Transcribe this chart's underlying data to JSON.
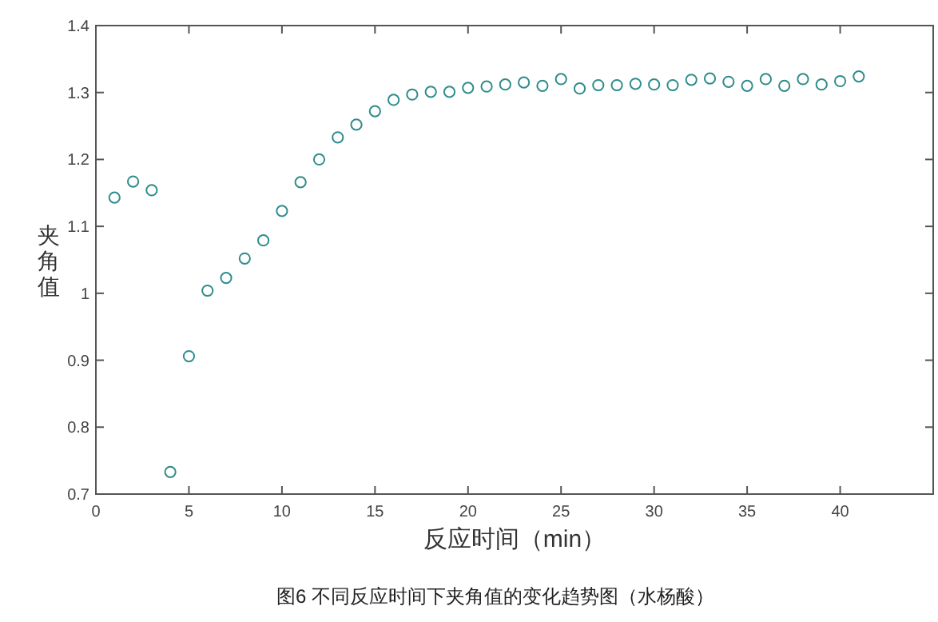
{
  "chart_data": {
    "type": "scatter",
    "xlabel": "反应时间（min）",
    "ylabel": "夹角值",
    "annotations": [
      "图6 不同反应时间下夹角值的变化趋势图（水杨酸）"
    ],
    "x": [
      1,
      2,
      3,
      4,
      5,
      6,
      7,
      8,
      9,
      10,
      11,
      12,
      13,
      14,
      15,
      16,
      17,
      18,
      19,
      20,
      21,
      22,
      23,
      24,
      25,
      26,
      27,
      28,
      29,
      30,
      31,
      32,
      33,
      34,
      35,
      36,
      37,
      38,
      39,
      40,
      41
    ],
    "values": [
      1.143,
      1.167,
      1.154,
      0.733,
      0.906,
      1.004,
      1.023,
      1.052,
      1.079,
      1.123,
      1.166,
      1.2,
      1.233,
      1.252,
      1.272,
      1.289,
      1.297,
      1.301,
      1.301,
      1.307,
      1.309,
      1.312,
      1.315,
      1.31,
      1.32,
      1.306,
      1.311,
      1.311,
      1.313,
      1.312,
      1.311,
      1.319,
      1.321,
      1.316,
      1.31,
      1.32,
      1.31,
      1.32,
      1.312,
      1.317,
      1.324
    ],
    "color": "#2f8c8c",
    "marker": "circle",
    "grid": false,
    "xlim": [
      0,
      45
    ],
    "xticks": [
      0,
      5,
      10,
      15,
      20,
      25,
      30,
      35,
      40
    ],
    "ylim": [
      0.7,
      1.4
    ],
    "yticks": [
      0.7,
      0.8,
      0.9,
      1,
      1.1,
      1.2,
      1.3,
      1.4
    ]
  }
}
